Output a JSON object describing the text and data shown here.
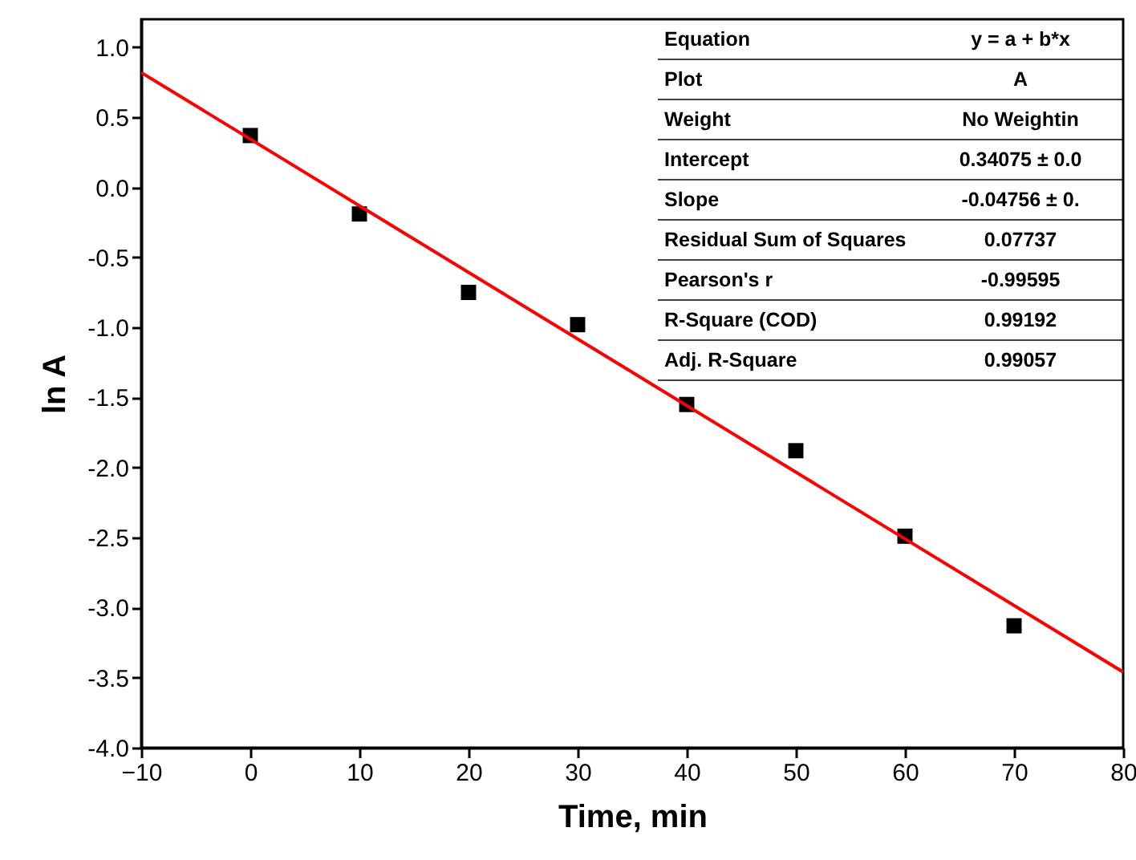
{
  "chart_data": {
    "type": "scatter",
    "xlabel": "Time, min",
    "ylabel": "ln A",
    "xlim": [
      -10,
      80
    ],
    "xticks": [
      -10,
      0,
      10,
      20,
      30,
      40,
      50,
      60,
      70,
      80
    ],
    "ylim": [
      -4.0,
      1.2
    ],
    "yticks": [
      {
        "value": -4.0,
        "label": "-4.0"
      },
      {
        "value": -3.5,
        "label": "-3.5"
      },
      {
        "value": -3.0,
        "label": "-3.0"
      },
      {
        "value": -2.5,
        "label": "-2.5"
      },
      {
        "value": -2.0,
        "label": "-2.0"
      },
      {
        "value": -1.5,
        "label": "-1.5"
      },
      {
        "value": -1.0,
        "label": "-1.0"
      },
      {
        "value": -0.5,
        "label": "-0.5"
      },
      {
        "value": 0.0,
        "label": "0.0"
      },
      {
        "value": 0.5,
        "label": "0.5"
      },
      {
        "value": 1.0,
        "label": "1.0"
      }
    ],
    "grid": false,
    "series": [
      {
        "color": "#000000",
        "marker": "square",
        "x": [
          0,
          10,
          20,
          30,
          40,
          50,
          60,
          70
        ],
        "values": [
          0.37,
          -0.19,
          -0.75,
          -0.98,
          -1.55,
          -1.88,
          -2.49,
          -3.13
        ]
      },
      {
        "type": "line",
        "marker": "none",
        "color": "#ff0000",
        "x": [
          -10,
          80
        ],
        "values": [
          0.82,
          -3.46
        ]
      }
    ],
    "annotations": [
      "Equation",
      "y = a + b*x",
      "Plot",
      "A",
      "Weight",
      "No Weightin",
      "Intercept",
      "0.34075 ± 0.0",
      "Slope",
      "-0.04756 ± 0.",
      "Residual Sum of Squares",
      "0.07737",
      "Pearson's r",
      "-0.99595",
      "R-Square (COD)",
      "0.99192",
      "Adj. R-Square",
      "0.99057"
    ]
  }
}
